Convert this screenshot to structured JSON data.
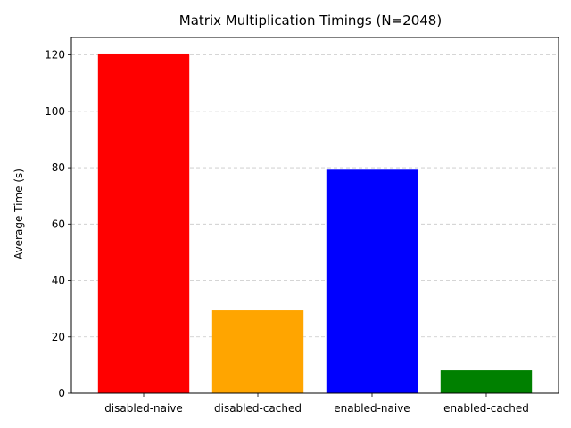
{
  "chart_data": {
    "type": "bar",
    "title": "Matrix Multiplication Timings (N=2048)",
    "xlabel": "",
    "ylabel": "Average Time (s)",
    "categories": [
      "disabled-naive",
      "disabled-cached",
      "enabled-naive",
      "enabled-cached"
    ],
    "values": [
      120.2,
      29.4,
      79.3,
      8.2
    ],
    "colors": [
      "#ff0000",
      "#ffa500",
      "#0000ff",
      "#008000"
    ],
    "ylim": [
      0,
      126.2
    ],
    "yticks": [
      0,
      20,
      40,
      60,
      80,
      100,
      120
    ],
    "grid": {
      "axis": "y",
      "style": "dashed"
    },
    "legend": "none"
  }
}
